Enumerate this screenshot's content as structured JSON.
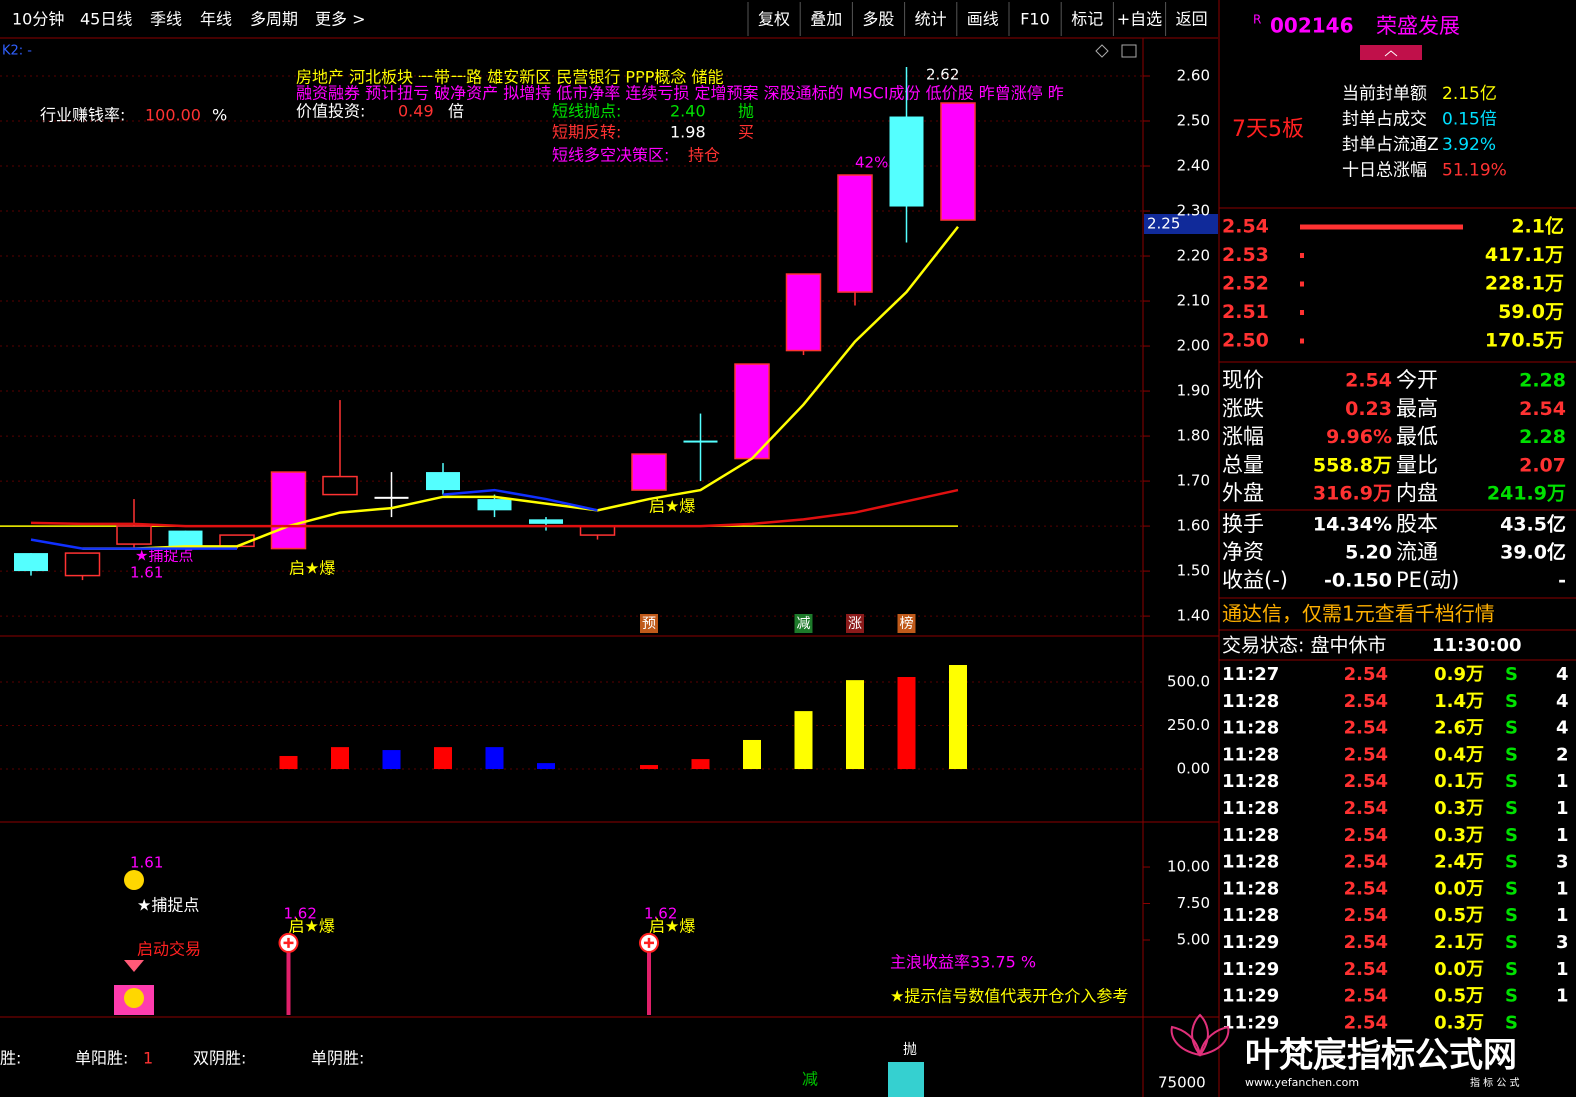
{
  "toolbar": {
    "left": [
      "10分钟",
      "45日线",
      "季线",
      "年线",
      "多周期",
      "更多 >"
    ],
    "right": [
      "复权",
      "叠加",
      "多股",
      "统计",
      "画线",
      "F10",
      "标记",
      "+自选",
      "返回"
    ]
  },
  "main_chart": {
    "label": "K2: -",
    "tags_line1": "房地产    河北板块  一带一路 雄安新区 民营银行 PPP概念 储能",
    "tags_line2": "融资融券 预计扭亏 破净资产 拟增持 低市净率 连续亏损 定增预案 深股通标的 MSCI成份 低价股 昨曾涨停 昨",
    "industry_label": "行业赚钱率:",
    "industry_value": "100.00",
    "industry_unit": "%",
    "value_label": "价值投资:",
    "value_value": "0.49",
    "value_unit": "倍",
    "signal1_label": "短线抛点:",
    "signal1_value": "2.40",
    "signal1_action": "抛",
    "signal2_label": "短期反转:",
    "signal2_value": "1.98",
    "signal2_action": "买",
    "strategy_label": "短线多空决策区:",
    "strategy_value": "持仓",
    "cursor_price": "2.25",
    "high_label": "2.62",
    "pct_label": "42%",
    "low_label": "1.61",
    "catch_label": "★捕捉点",
    "burst_label": "启★爆",
    "markers": [
      "预",
      "减",
      "涨",
      "榜"
    ],
    "marker_colors": [
      "#c05a1a",
      "#1d7a2a",
      "#8b1a1a",
      "#c05a1a"
    ],
    "ylim": [
      1.358,
      2.68
    ],
    "yticks": [
      {
        "value": 2.6,
        "label": "2.60"
      },
      {
        "value": 2.5,
        "label": "2.50"
      },
      {
        "value": 2.4,
        "label": "2.40"
      },
      {
        "value": 2.3,
        "label": "2.30"
      },
      {
        "value": 2.2,
        "label": "2.20"
      },
      {
        "value": 2.1,
        "label": "2.10"
      },
      {
        "value": 2.0,
        "label": "2.00"
      },
      {
        "value": 1.9,
        "label": "1.90"
      },
      {
        "value": 1.8,
        "label": "1.80"
      },
      {
        "value": 1.7,
        "label": "1.70"
      },
      {
        "value": 1.6,
        "label": "1.60"
      },
      {
        "value": 1.5,
        "label": "1.50"
      },
      {
        "value": 1.4,
        "label": "1.40"
      }
    ],
    "grid": true,
    "colors": {
      "up": "#ff3232",
      "down": "#54ffff",
      "limit": "#ff00ff",
      "grid": "#5a0000"
    },
    "candles": [
      {
        "open": 1.54,
        "high": 1.54,
        "low": 1.49,
        "close": 1.5,
        "style": "down"
      },
      {
        "open": 1.49,
        "high": 1.54,
        "low": 1.48,
        "close": 1.54,
        "style": "up"
      },
      {
        "open": 1.56,
        "high": 1.66,
        "low": 1.55,
        "close": 1.6,
        "style": "up"
      },
      {
        "open": 1.59,
        "high": 1.59,
        "low": 1.55,
        "close": 1.555,
        "style": "down"
      },
      {
        "open": 1.555,
        "high": 1.58,
        "low": 1.55,
        "close": 1.58,
        "style": "up"
      },
      {
        "open": 1.55,
        "high": 1.72,
        "low": 1.55,
        "close": 1.72,
        "style": "limit"
      },
      {
        "open": 1.67,
        "high": 1.88,
        "low": 1.67,
        "close": 1.71,
        "style": "up"
      },
      {
        "open": 1.665,
        "high": 1.72,
        "low": 1.62,
        "close": 1.665,
        "style": "cross"
      },
      {
        "open": 1.72,
        "high": 1.74,
        "low": 1.67,
        "close": 1.68,
        "style": "down"
      },
      {
        "open": 1.66,
        "high": 1.67,
        "low": 1.62,
        "close": 1.635,
        "style": "down"
      },
      {
        "open": 1.615,
        "high": 1.62,
        "low": 1.59,
        "close": 1.605,
        "style": "down"
      },
      {
        "open": 1.58,
        "high": 1.6,
        "low": 1.57,
        "close": 1.6,
        "style": "up"
      },
      {
        "open": 1.68,
        "high": 1.76,
        "low": 1.68,
        "close": 1.76,
        "style": "limit"
      },
      {
        "open": 1.79,
        "high": 1.85,
        "low": 1.7,
        "close": 1.79,
        "style": "down"
      },
      {
        "open": 1.75,
        "high": 1.96,
        "low": 1.75,
        "close": 1.96,
        "style": "limit"
      },
      {
        "open": 1.99,
        "high": 2.16,
        "low": 1.98,
        "close": 2.16,
        "style": "limit"
      },
      {
        "open": 2.12,
        "high": 2.38,
        "low": 2.09,
        "close": 2.38,
        "style": "limit"
      },
      {
        "open": 2.51,
        "high": 2.62,
        "low": 2.23,
        "close": 2.31,
        "style": "down"
      },
      {
        "open": 2.28,
        "high": 2.54,
        "low": 2.28,
        "close": 2.54,
        "style": "limit"
      }
    ],
    "lines": [
      {
        "color": "#ffff00",
        "values": [
          null,
          1.55,
          1.55,
          1.555,
          1.555,
          1.6,
          1.63,
          1.64,
          1.665,
          1.665,
          1.65,
          1.635,
          1.66,
          1.68,
          1.75,
          1.87,
          2.01,
          2.12,
          2.265
        ]
      },
      {
        "color": "#1030ff",
        "values": [
          1.57,
          1.55,
          1.55,
          1.55,
          1.55,
          null,
          null,
          null,
          1.67,
          1.68,
          1.66,
          1.635,
          null,
          null,
          null,
          null,
          null,
          null,
          null
        ]
      },
      {
        "color": "#e01010",
        "values": [
          1.607,
          1.605,
          1.605,
          1.6,
          1.6,
          1.6,
          1.6,
          1.6,
          1.6,
          1.6,
          1.6,
          1.6,
          1.6,
          1.6,
          1.605,
          1.615,
          1.63,
          1.655,
          1.68
        ]
      }
    ],
    "level_line": 1.6,
    "level_color": "#ffff00"
  },
  "volume_chart": {
    "ylim": [
      -293,
      759
    ],
    "yticks": [
      {
        "value": 500,
        "label": "500.0"
      },
      {
        "value": 250,
        "label": "250.0"
      },
      {
        "value": 0,
        "label": "0.00"
      }
    ],
    "values": [
      null,
      null,
      null,
      null,
      null,
      75,
      126,
      109,
      126,
      126,
      34,
      null,
      23,
      57,
      167,
      333,
      511,
      529,
      598
    ],
    "colors": [
      null,
      null,
      null,
      null,
      null,
      "#ff0000",
      "#ff0000",
      "#0000ff",
      "#ff0000",
      "#0000ff",
      "#0000ff",
      null,
      "#ff0000",
      "#ff0000",
      "#ffff00",
      "#ffff00",
      "#ffff00",
      "#ff0000",
      "#ffff00"
    ]
  },
  "signal_chart": {
    "ylim": [
      -0.14,
      12.88
    ],
    "yticks": [
      {
        "value": 10,
        "label": "10.00"
      },
      {
        "value": 7.5,
        "label": "7.50"
      },
      {
        "value": 5,
        "label": "5.00"
      }
    ],
    "top_label": "1.61",
    "catch_label": "★捕捉点",
    "start_label": "启动交易",
    "stems": [
      {
        "index": 5,
        "value": 4.8,
        "price_label": "1.62",
        "text": "启★爆"
      },
      {
        "index": 12,
        "value": 4.8,
        "price_label": "1.62",
        "text": "启★爆"
      }
    ],
    "stem_color": "#e0206a",
    "return_label": "主浪收益率33.75 %",
    "note": "★提示信号数值代表开仓介入参考"
  },
  "stats_bar": {
    "win": "胜:",
    "single_up": "单阳胜:",
    "single_up_value": "1",
    "double_down": "双阴胜:",
    "single_down": "单阴胜:",
    "reduce": "减",
    "sell": "抛",
    "axis_label": "75000"
  },
  "quote_panel": {
    "market": "R",
    "code": "002146",
    "name": "荣盛发展",
    "streak": "7天5板",
    "info": [
      {
        "label": "当前封单额",
        "value": "2.15亿",
        "color": "#ffff00"
      },
      {
        "label": "封单占成交",
        "value": "0.15倍",
        "color": "#00e0ff"
      },
      {
        "label": "封单占流通Z",
        "value": "3.92%",
        "color": "#00e0ff"
      },
      {
        "label": "十日总涨幅",
        "value": "51.19%",
        "color": "#ff3232"
      }
    ],
    "order_book": [
      {
        "price": "2.54",
        "volume": 21000,
        "volume_label": "2.1亿"
      },
      {
        "price": "2.53",
        "volume": 417.1,
        "volume_label": "417.1万"
      },
      {
        "price": "2.52",
        "volume": 228.1,
        "volume_label": "228.1万"
      },
      {
        "price": "2.51",
        "volume": 59.0,
        "volume_label": "59.0万"
      },
      {
        "price": "2.50",
        "volume": 170.5,
        "volume_label": "170.5万"
      }
    ],
    "quotes": [
      {
        "label": "现价",
        "value": "2.54",
        "color": "#ff3232",
        "label2": "今开",
        "value2": "2.28",
        "color2": "#00e000"
      },
      {
        "label": "涨跌",
        "value": "0.23",
        "color": "#ff3232",
        "label2": "最高",
        "value2": "2.54",
        "color2": "#ff3232"
      },
      {
        "label": "涨幅",
        "value": "9.96%",
        "color": "#ff3232",
        "label2": "最低",
        "value2": "2.28",
        "color2": "#00e000"
      },
      {
        "label": "总量",
        "value": "558.8万",
        "color": "#ffff00",
        "label2": "量比",
        "value2": "2.07",
        "color2": "#ff3232"
      },
      {
        "label": "外盘",
        "value": "316.9万",
        "color": "#ff3232",
        "label2": "内盘",
        "value2": "241.9万",
        "color2": "#00e000"
      }
    ],
    "fundamentals": [
      {
        "label": "换手",
        "value": "14.34%",
        "label2": "股本",
        "value2": "43.5亿"
      },
      {
        "label": "净资",
        "value": "5.20",
        "label2": "流通",
        "value2": "39.0亿"
      },
      {
        "label": "收益(-)",
        "value": "-0.150",
        "label2": "PE(动)",
        "value2": "-"
      }
    ],
    "banner": "通达信，仅需1元查看千档行情",
    "status": "交易状态: 盘中休市",
    "status_time": "11:30:00",
    "ticks": [
      [
        "11:27",
        "2.54",
        "0.9万",
        "S",
        "4"
      ],
      [
        "11:28",
        "2.54",
        "1.4万",
        "S",
        "4"
      ],
      [
        "11:28",
        "2.54",
        "2.6万",
        "S",
        "4"
      ],
      [
        "11:28",
        "2.54",
        "0.4万",
        "S",
        "2"
      ],
      [
        "11:28",
        "2.54",
        "0.1万",
        "S",
        "1"
      ],
      [
        "11:28",
        "2.54",
        "0.3万",
        "S",
        "1"
      ],
      [
        "11:28",
        "2.54",
        "0.3万",
        "S",
        "1"
      ],
      [
        "11:28",
        "2.54",
        "2.4万",
        "S",
        "3"
      ],
      [
        "11:28",
        "2.54",
        "0.0万",
        "S",
        "1"
      ],
      [
        "11:28",
        "2.54",
        "0.5万",
        "S",
        "1"
      ],
      [
        "11:29",
        "2.54",
        "2.1万",
        "S",
        "3"
      ],
      [
        "11:29",
        "2.54",
        "0.0万",
        "S",
        "1"
      ],
      [
        "11:29",
        "2.54",
        "0.5万",
        "S",
        "1"
      ],
      [
        "11:29",
        "2.54",
        "0.3万",
        "S"
      ]
    ]
  },
  "watermark": {
    "title": "叶梵宸指标公式网",
    "url": "www.yefanchen.com",
    "sub": "指 标 公 式"
  }
}
